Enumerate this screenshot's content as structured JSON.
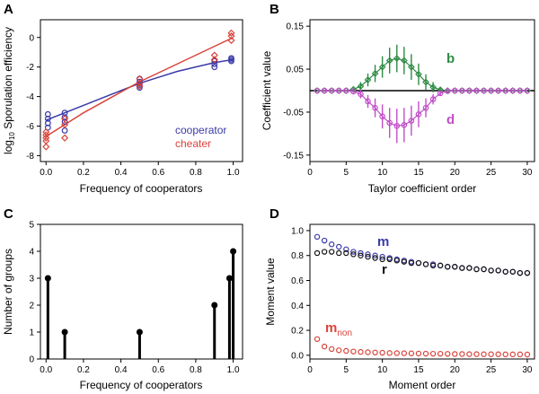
{
  "chart_data": [
    {
      "panel": "A",
      "type": "scatter",
      "xlabel": "Frequency of cooperators",
      "ylabel_prefix": "log",
      "ylabel_sub": "10",
      "ylabel_rest": " Sporulation efficiency",
      "xlim": [
        -0.03,
        1.05
      ],
      "ylim": [
        -8.4,
        1.2
      ],
      "xticks": [
        0.0,
        0.2,
        0.4,
        0.6,
        0.8,
        1.0
      ],
      "xtick_labels": [
        "0.0",
        "0.2",
        "0.4",
        "0.6",
        "0.8",
        "1.0"
      ],
      "yticks": [
        -8,
        -6,
        -4,
        -2,
        0
      ],
      "ytick_labels": [
        "-8",
        "-6",
        "-4",
        "-2",
        "0"
      ],
      "series": [
        {
          "name": "cooperator",
          "color": "#3a3aa8",
          "marker": "circle",
          "x": [
            0.01,
            0.01,
            0.01,
            0.01,
            0.1,
            0.1,
            0.1,
            0.1,
            0.5,
            0.5,
            0.5,
            0.5,
            0.9,
            0.9,
            0.9,
            0.99,
            0.99,
            0.99
          ],
          "y": [
            -5.2,
            -5.5,
            -5.8,
            -6.1,
            -5.1,
            -5.4,
            -5.7,
            -6.3,
            -2.8,
            -3.0,
            -3.2,
            -3.4,
            -1.6,
            -1.8,
            -2.0,
            -1.4,
            -1.5,
            -1.6
          ],
          "fit_x": [
            0.0,
            0.1,
            0.2,
            0.3,
            0.4,
            0.5,
            0.6,
            0.7,
            0.8,
            0.9,
            1.0
          ],
          "fit_y": [
            -5.6,
            -5.1,
            -4.6,
            -4.1,
            -3.6,
            -3.1,
            -2.7,
            -2.3,
            -2.0,
            -1.7,
            -1.5
          ]
        },
        {
          "name": "cheater",
          "color": "#d9433a",
          "marker": "diamond",
          "x": [
            0.0,
            0.0,
            0.0,
            0.0,
            0.0,
            0.1,
            0.1,
            0.1,
            0.5,
            0.5,
            0.5,
            0.9,
            0.9,
            0.99,
            0.99,
            0.99
          ],
          "y": [
            -6.4,
            -6.6,
            -6.8,
            -7.0,
            -7.4,
            -5.5,
            -5.9,
            -6.8,
            -2.8,
            -3.1,
            -3.3,
            -1.2,
            -1.5,
            0.3,
            0.1,
            -0.2
          ],
          "fit_x": [
            0.0,
            0.1,
            0.2,
            0.3,
            0.4,
            0.5,
            0.6,
            0.7,
            0.8,
            0.9,
            1.0
          ],
          "fit_y": [
            -6.7,
            -5.9,
            -5.1,
            -4.4,
            -3.7,
            -3.0,
            -2.4,
            -1.8,
            -1.2,
            -0.6,
            0.0
          ]
        }
      ],
      "legend": [
        "cooperator",
        "cheater"
      ],
      "legend_position": "bottom-right"
    },
    {
      "panel": "B",
      "type": "line",
      "xlabel": "Taylor coefficient order",
      "ylabel": "Coefficient value",
      "xlim": [
        0,
        31
      ],
      "ylim": [
        -0.165,
        0.165
      ],
      "xticks": [
        0,
        5,
        10,
        15,
        20,
        25,
        30
      ],
      "xtick_labels": [
        "0",
        "5",
        "10",
        "15",
        "20",
        "25",
        "30"
      ],
      "yticks": [
        -0.15,
        -0.05,
        0.05,
        0.15
      ],
      "ytick_labels": [
        "-0.15",
        "-0.05",
        "0.05",
        "0.15"
      ],
      "series": [
        {
          "name": "b",
          "color": "#2e8b44",
          "marker": "diamond",
          "x": [
            1,
            2,
            3,
            4,
            5,
            6,
            7,
            8,
            9,
            10,
            11,
            12,
            13,
            14,
            15,
            16,
            17,
            18,
            19,
            20,
            21,
            22,
            23,
            24,
            25,
            26,
            27,
            28,
            29,
            30
          ],
          "y": [
            0,
            0,
            0,
            0,
            0,
            0.003,
            0.01,
            0.025,
            0.04,
            0.055,
            0.07,
            0.075,
            0.07,
            0.055,
            0.038,
            0.02,
            0.008,
            0.002,
            0,
            0,
            0,
            0,
            0,
            0,
            0,
            0,
            0,
            0,
            0,
            0
          ],
          "err": [
            0,
            0,
            0,
            0,
            0,
            0.004,
            0.01,
            0.015,
            0.02,
            0.025,
            0.03,
            0.032,
            0.032,
            0.03,
            0.025,
            0.018,
            0.012,
            0.006,
            0.003,
            0,
            0,
            0,
            0,
            0,
            0,
            0,
            0,
            0,
            0,
            0
          ]
        },
        {
          "name": "d",
          "color": "#c24fc9",
          "marker": "circle",
          "x": [
            1,
            2,
            3,
            4,
            5,
            6,
            7,
            8,
            9,
            10,
            11,
            12,
            13,
            14,
            15,
            16,
            17,
            18,
            19,
            20,
            21,
            22,
            23,
            24,
            25,
            26,
            27,
            28,
            29,
            30
          ],
          "y": [
            0,
            0,
            0,
            0,
            0,
            -0.002,
            -0.008,
            -0.025,
            -0.04,
            -0.06,
            -0.075,
            -0.082,
            -0.08,
            -0.07,
            -0.055,
            -0.04,
            -0.02,
            -0.006,
            -0.001,
            0,
            0,
            0,
            0,
            0,
            0,
            0,
            0,
            0,
            0,
            0
          ],
          "err": [
            0,
            0,
            0,
            0,
            0,
            0.004,
            0.01,
            0.015,
            0.022,
            0.028,
            0.035,
            0.04,
            0.04,
            0.035,
            0.03,
            0.022,
            0.012,
            0.006,
            0.003,
            0,
            0,
            0,
            0,
            0,
            0,
            0,
            0,
            0,
            0,
            0
          ]
        }
      ],
      "labels": {
        "b": "b",
        "d": "d"
      },
      "zero_line": true
    },
    {
      "panel": "C",
      "type": "bar",
      "xlabel": "Frequency of cooperators",
      "ylabel": "Number of groups",
      "xlim": [
        -0.03,
        1.05
      ],
      "ylim": [
        0,
        5
      ],
      "xticks": [
        0.0,
        0.2,
        0.4,
        0.6,
        0.8,
        1.0
      ],
      "xtick_labels": [
        "0.0",
        "0.2",
        "0.4",
        "0.6",
        "0.8",
        "1.0"
      ],
      "yticks": [
        0,
        1,
        2,
        3,
        4,
        5
      ],
      "ytick_labels": [
        "0",
        "1",
        "2",
        "3",
        "4",
        "5"
      ],
      "x": [
        0.01,
        0.1,
        0.5,
        0.9,
        0.98,
        1.0
      ],
      "values": [
        3,
        1,
        1,
        2,
        3,
        4
      ]
    },
    {
      "panel": "D",
      "type": "scatter",
      "xlabel": "Moment order",
      "ylabel": "Moment value",
      "xlim": [
        0,
        31
      ],
      "ylim": [
        -0.03,
        1.05
      ],
      "xticks": [
        0,
        5,
        10,
        15,
        20,
        25,
        30
      ],
      "xtick_labels": [
        "0",
        "5",
        "10",
        "15",
        "20",
        "25",
        "30"
      ],
      "yticks": [
        0.0,
        0.2,
        0.4,
        0.6,
        0.8,
        1.0
      ],
      "ytick_labels": [
        "0.0",
        "0.2",
        "0.4",
        "0.6",
        "0.8",
        "1.0"
      ],
      "series": [
        {
          "name": "m",
          "color": "#3a3aa8",
          "x": [
            1,
            2,
            3,
            4,
            5,
            6,
            7,
            8,
            9,
            10,
            11,
            12,
            13,
            14,
            15,
            16,
            17,
            18,
            19,
            20,
            21,
            22,
            23,
            24,
            25,
            26,
            27,
            28,
            29,
            30
          ],
          "y": [
            0.95,
            0.92,
            0.89,
            0.87,
            0.85,
            0.83,
            0.82,
            0.81,
            0.8,
            0.79,
            0.78,
            0.77,
            0.76,
            0.75,
            0.74,
            0.73,
            0.73,
            0.72,
            0.71,
            0.71,
            0.7,
            0.7,
            0.69,
            0.69,
            0.68,
            0.68,
            0.67,
            0.67,
            0.66,
            0.66
          ]
        },
        {
          "name": "r",
          "color": "#111111",
          "x": [
            1,
            2,
            3,
            4,
            5,
            6,
            7,
            8,
            9,
            10,
            11,
            12,
            13,
            14,
            15,
            16,
            17,
            18,
            19,
            20,
            21,
            22,
            23,
            24,
            25,
            26,
            27,
            28,
            29,
            30
          ],
          "y": [
            0.82,
            0.83,
            0.83,
            0.82,
            0.82,
            0.81,
            0.8,
            0.79,
            0.78,
            0.77,
            0.77,
            0.76,
            0.75,
            0.74,
            0.74,
            0.73,
            0.72,
            0.72,
            0.71,
            0.71,
            0.7,
            0.7,
            0.69,
            0.69,
            0.68,
            0.68,
            0.67,
            0.67,
            0.66,
            0.66
          ]
        },
        {
          "name": "m_non",
          "color": "#d9433a",
          "x": [
            1,
            2,
            3,
            4,
            5,
            6,
            7,
            8,
            9,
            10,
            11,
            12,
            13,
            14,
            15,
            16,
            17,
            18,
            19,
            20,
            21,
            22,
            23,
            24,
            25,
            26,
            27,
            28,
            29,
            30
          ],
          "y": [
            0.13,
            0.07,
            0.05,
            0.04,
            0.035,
            0.03,
            0.027,
            0.024,
            0.022,
            0.02,
            0.018,
            0.017,
            0.016,
            0.015,
            0.014,
            0.013,
            0.012,
            0.012,
            0.011,
            0.01,
            0.01,
            0.009,
            0.009,
            0.008,
            0.008,
            0.008,
            0.007,
            0.007,
            0.007,
            0.006
          ]
        }
      ],
      "labels": {
        "m": "m",
        "r": "r",
        "m_non_main": "m",
        "m_non_sub": "non"
      }
    }
  ],
  "panel_labels": [
    "A",
    "B",
    "C",
    "D"
  ],
  "colors": {
    "axis": "#000000",
    "zero_line": "#000000",
    "stem": "#000000"
  }
}
